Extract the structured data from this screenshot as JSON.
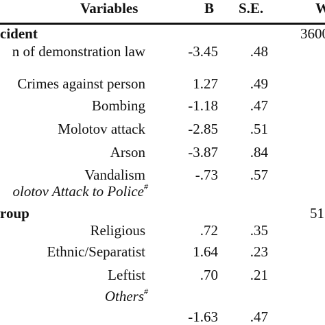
{
  "header": {
    "variables": "Variables",
    "b": "B",
    "se": "S.E.",
    "w": "W"
  },
  "sections": [
    {
      "label": "cident",
      "w_value": "3600"
    },
    {
      "label": "roup",
      "w_value": "51"
    }
  ],
  "rows": [
    {
      "label": "n of demonstration law",
      "b": "-3.45",
      "se": ".48"
    },
    {
      "label": "Crimes against person",
      "b": "1.27",
      "se": ".49"
    },
    {
      "label": "Bombing",
      "b": "-1.18",
      "se": ".47"
    },
    {
      "label": "Molotov attack",
      "b": "-2.85",
      "se": ".51"
    },
    {
      "label": "Arson",
      "b": "-3.87",
      "se": ".84"
    },
    {
      "label": "Vandalism",
      "b": "-.73",
      "se": ".57"
    },
    {
      "label": "olotov Attack to Police",
      "sup": "#"
    },
    {
      "label": "Religious",
      "b": ".72",
      "se": ".35"
    },
    {
      "label": "Ethnic/Separatist",
      "b": "1.64",
      "se": ".23"
    },
    {
      "label": "Leftist",
      "b": ".70",
      "se": ".21"
    },
    {
      "label": "Others",
      "sup": "#"
    },
    {
      "b": "-1.63",
      "se": ".47"
    }
  ]
}
